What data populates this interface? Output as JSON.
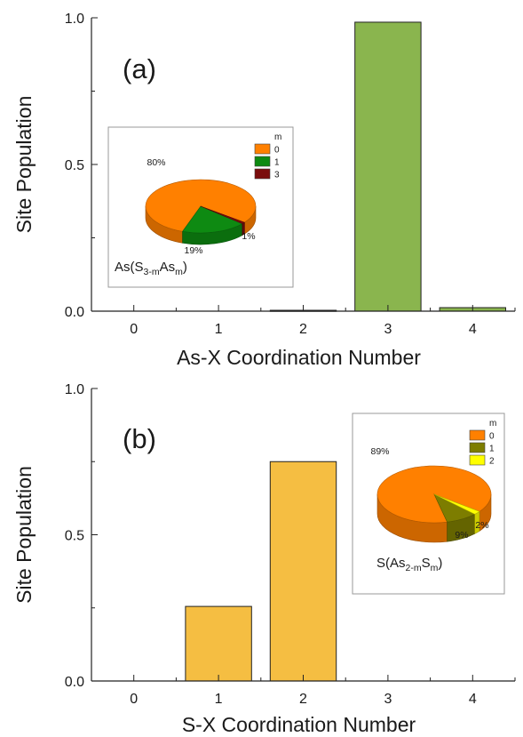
{
  "chart_data": [
    {
      "type": "bar",
      "panel_label": "(a)",
      "xlabel": "As-X Coordination Number",
      "ylabel": "Site Population",
      "x": [
        0,
        1,
        2,
        3,
        4
      ],
      "values": [
        0.0,
        0.0,
        0.003,
        0.985,
        0.012
      ],
      "ylim": [
        0,
        1.0
      ],
      "xlim": [
        -0.5,
        4.5
      ],
      "yticks": [
        "0.0",
        "0.5",
        "1.0"
      ],
      "xticks": [
        "0",
        "1",
        "2",
        "3",
        "4"
      ],
      "bar_color": "#8ab54e",
      "inset": {
        "type": "pie",
        "composition_label": {
          "pre": "As(S",
          "sub1": "3-m",
          "mid": "As",
          "sub2": "m",
          "post": ")"
        },
        "legend_title": "m",
        "slices": [
          {
            "label": "0",
            "value": 80,
            "text": "80%",
            "color": "#ff8000"
          },
          {
            "label": "1",
            "value": 19,
            "text": "19%",
            "color": "#0e8a12"
          },
          {
            "label": "3",
            "value": 1,
            "text": "1%",
            "color": "#7a0c0c"
          }
        ]
      }
    },
    {
      "type": "bar",
      "panel_label": "(b)",
      "xlabel": "S-X Coordination Number",
      "ylabel": "Site Population",
      "x": [
        0,
        1,
        2,
        3,
        4
      ],
      "values": [
        0.0,
        0.255,
        0.75,
        0.0,
        0.0
      ],
      "ylim": [
        0,
        1.0
      ],
      "xlim": [
        -0.5,
        4.5
      ],
      "yticks": [
        "0.0",
        "0.5",
        "1.0"
      ],
      "xticks": [
        "0",
        "1",
        "2",
        "3",
        "4"
      ],
      "bar_color": "#f5be42",
      "inset": {
        "type": "pie",
        "composition_label": {
          "pre": "S(As",
          "sub1": "2-m",
          "mid": "S",
          "sub2": "m",
          "post": ")"
        },
        "legend_title": "m",
        "slices": [
          {
            "label": "0",
            "value": 89,
            "text": "89%",
            "color": "#ff8000"
          },
          {
            "label": "1",
            "value": 9,
            "text": "9%",
            "color": "#7d7d00"
          },
          {
            "label": "2",
            "value": 2,
            "text": "2%",
            "color": "#ffff00"
          }
        ]
      }
    }
  ]
}
